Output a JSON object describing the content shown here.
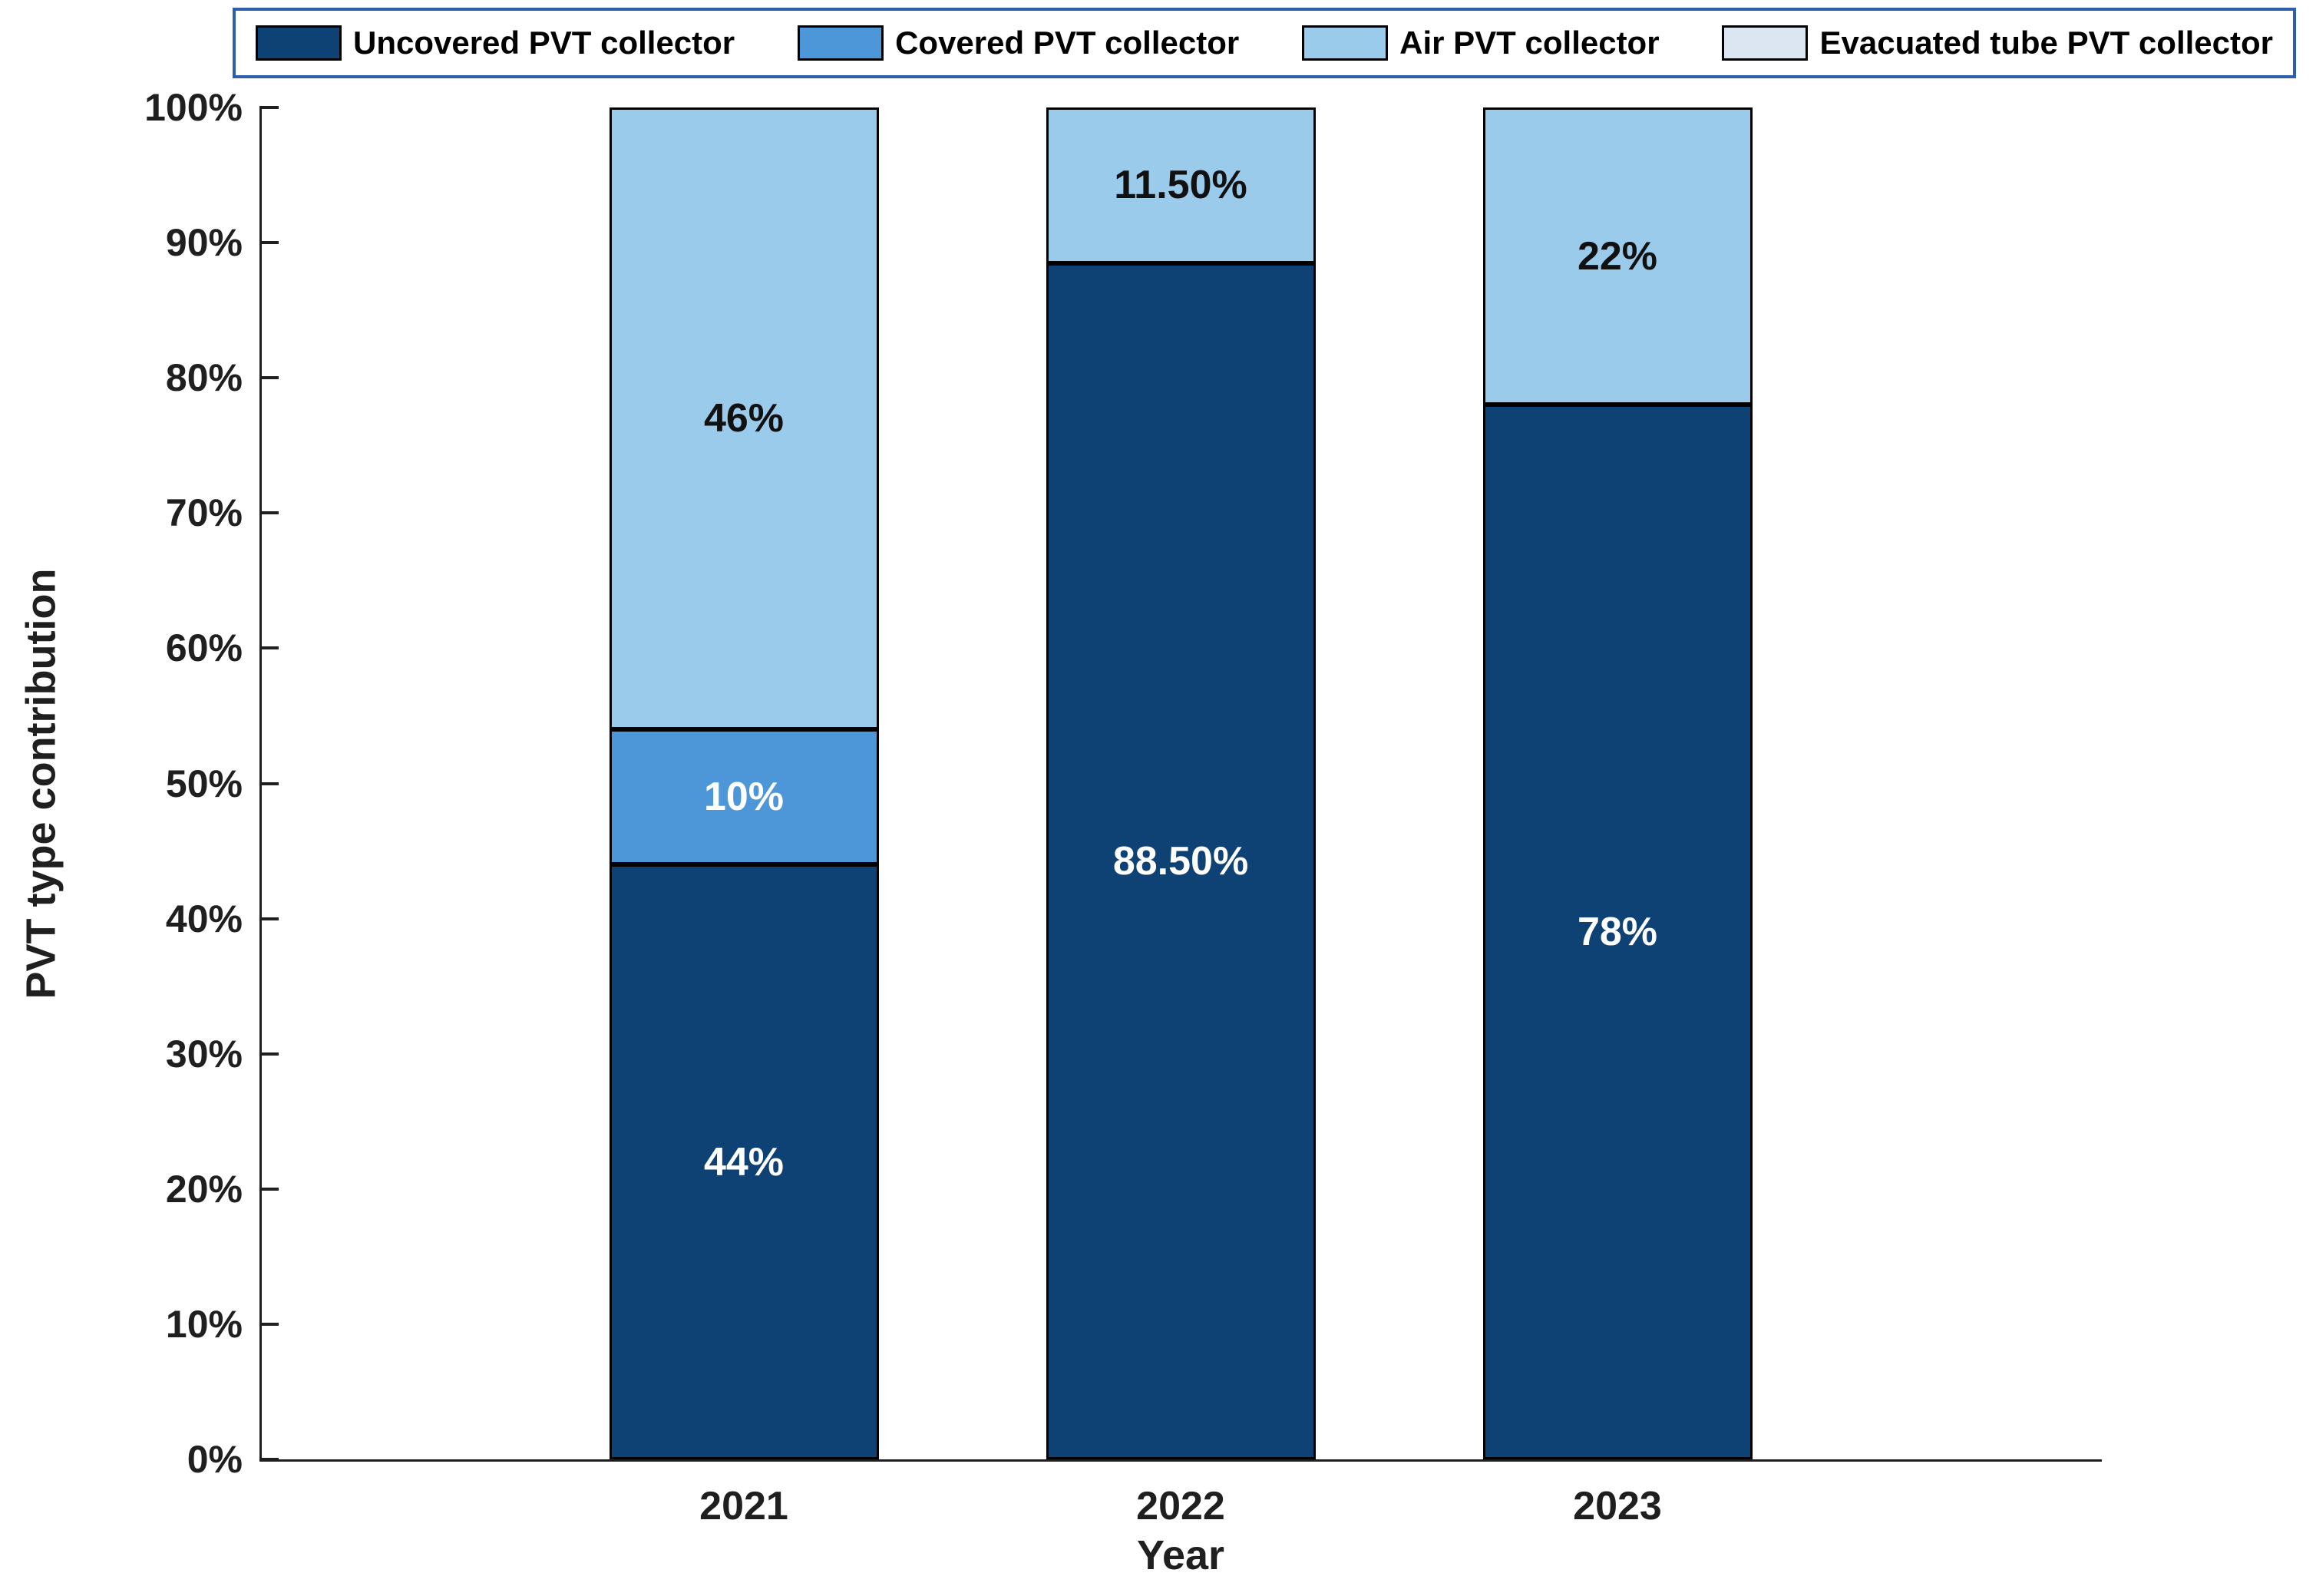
{
  "chart_data": {
    "type": "bar",
    "stacked": true,
    "title": "",
    "xlabel": "Year",
    "ylabel": "PVT type contribution",
    "categories": [
      "2021",
      "2022",
      "2023"
    ],
    "series": [
      {
        "name": "Uncovered PVT collector",
        "color": "#0E4174",
        "label_text_color": "#FFFFFF",
        "values": [
          44,
          88.5,
          78
        ],
        "labels": [
          "44%",
          "88.50%",
          "78%"
        ]
      },
      {
        "name": "Covered PVT collector",
        "color": "#4D97D8",
        "label_text_color": "#FFFFFF",
        "values": [
          10,
          0,
          0
        ],
        "labels": [
          "10%",
          "",
          ""
        ]
      },
      {
        "name": "Air PVT collector",
        "color": "#9ACBEB",
        "label_text_color": "#111111",
        "values": [
          46,
          11.5,
          22
        ],
        "labels": [
          "46%",
          "11.50%",
          "22%"
        ]
      },
      {
        "name": "Evacuated tube PVT collector",
        "color": "#DCE6F2",
        "label_text_color": "#111111",
        "values": [
          0,
          0,
          0
        ],
        "labels": [
          "",
          "",
          ""
        ]
      }
    ],
    "ylim": [
      0,
      100
    ],
    "yticks": {
      "values": [
        0,
        10,
        20,
        30,
        40,
        50,
        60,
        70,
        80,
        90,
        100
      ],
      "labels": [
        "0%",
        "10%",
        "20%",
        "30%",
        "40%",
        "50%",
        "60%",
        "70%",
        "80%",
        "90%",
        "100%"
      ]
    },
    "legend_position": "top",
    "legend_border_color": "#2E5FA8",
    "grid": false
  }
}
